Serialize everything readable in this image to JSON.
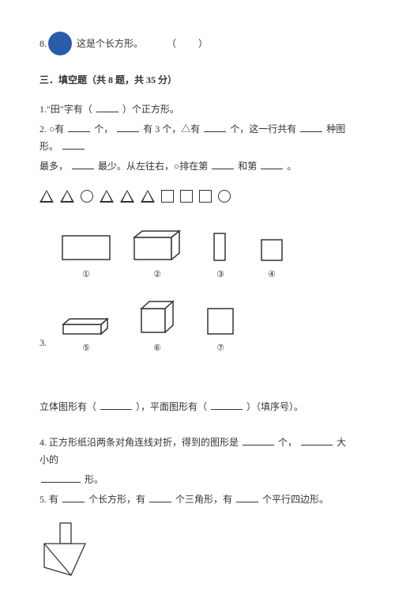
{
  "q8": {
    "num": "8.",
    "text": "这是个长方形。",
    "paren": "（　）",
    "circle_color": "#2a5caa"
  },
  "section": {
    "title": "三．填空题（共 8 题，共 35 分）"
  },
  "q1": {
    "prefix": "1.\"田\"字有（",
    "suffix": "）个正方形。"
  },
  "q2": {
    "a": "2. ○有",
    "b": "个，",
    "c": "有 3 个，△有",
    "d": "个，这一行共有",
    "e": "种图形。",
    "f": "最多，",
    "g": "最少。从左往右，○排在第",
    "h": "和第",
    "i": "。"
  },
  "q3": {
    "num": "3.",
    "labels": [
      "①",
      "②",
      "③",
      "④",
      "⑤",
      "⑥",
      "⑦"
    ],
    "text_a": "立体图形有（",
    "text_b": "），平面图形有（",
    "text_c": "）（填序号）。"
  },
  "q4": {
    "a": "4. 正方形纸沿两条对角连线对折，得到的图形是",
    "b": "个，",
    "c": "大小的",
    "d": "形。"
  },
  "q5": {
    "a": "5. 有",
    "b": "个长方形，有",
    "c": "个三角形，有",
    "d": "个平行四边形。"
  },
  "shape_sequence": [
    "tri",
    "tri",
    "circ",
    "tri",
    "tri",
    "tri",
    "sq",
    "sq",
    "sq",
    "circ"
  ],
  "colors": {
    "stroke": "#333333",
    "bg": "#ffffff"
  }
}
